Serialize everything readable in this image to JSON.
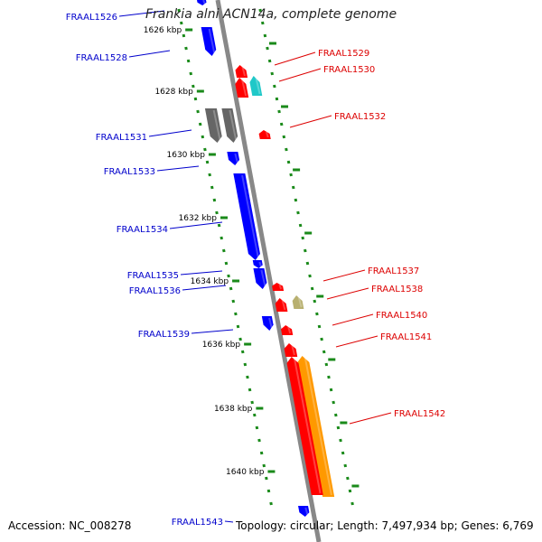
{
  "title": "Frankia alni ACN14a, complete genome",
  "footer": {
    "accession": "Accession: NC_008278",
    "topology": "Topology: circular; Length: 7,497,934 bp; Genes: 6,769"
  },
  "colors": {
    "axis": "#888888",
    "ticks": "#1a8a1a",
    "forward_label": "#0000cc",
    "reverse_label": "#dd0000",
    "blue": "#0000ff",
    "red": "#ff0000",
    "gray": "#666666",
    "cyan": "#20c8c8",
    "khaki": "#b8b070",
    "orange": "#ff9900"
  },
  "ruler": [
    "1626 kbp",
    "1628 kbp",
    "1630 kbp",
    "1632 kbp",
    "1634 kbp",
    "1636 kbp",
    "1638 kbp",
    "1640 kbp"
  ],
  "forward_genes": [
    {
      "id": "FRAAL1526",
      "color": "blue"
    },
    {
      "id": "FRAAL1528",
      "color": "blue"
    },
    {
      "id": "FRAAL1531",
      "color": "gray"
    },
    {
      "id": "FRAAL1533",
      "color": "blue"
    },
    {
      "id": "FRAAL1534",
      "color": "blue"
    },
    {
      "id": "FRAAL1535",
      "color": "blue"
    },
    {
      "id": "FRAAL1536",
      "color": "blue"
    },
    {
      "id": "FRAAL1539",
      "color": "blue"
    },
    {
      "id": "FRAAL1543",
      "color": "blue"
    }
  ],
  "reverse_genes": [
    {
      "id": "FRAAL1529",
      "color": "red"
    },
    {
      "id": "FRAAL1530",
      "color": "cyan"
    },
    {
      "id": "FRAAL1532",
      "color": "red"
    },
    {
      "id": "FRAAL1537",
      "color": "red"
    },
    {
      "id": "FRAAL1538",
      "color": "khaki"
    },
    {
      "id": "FRAAL1540",
      "color": "red"
    },
    {
      "id": "FRAAL1541",
      "color": "red"
    },
    {
      "id": "FRAAL1542",
      "color": "orange"
    }
  ]
}
